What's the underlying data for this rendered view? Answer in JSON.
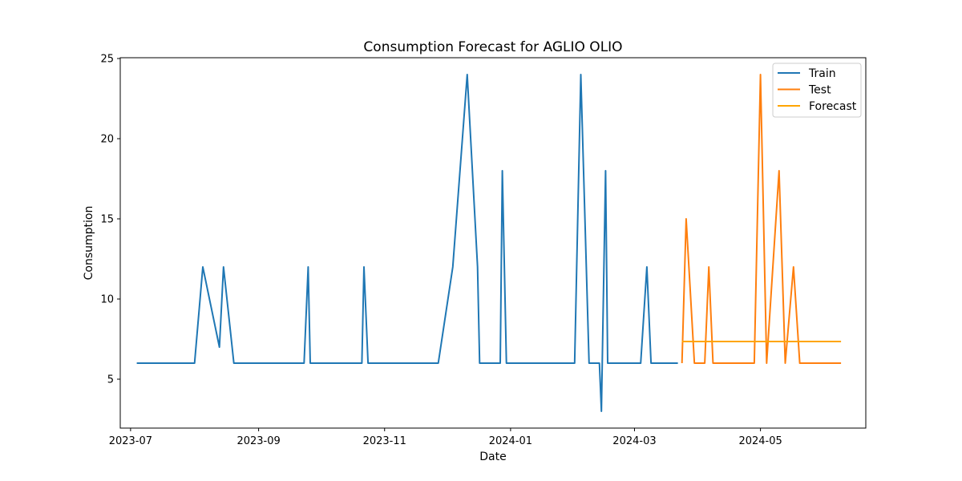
{
  "chart_data": {
    "type": "line",
    "title": "Consumption Forecast for AGLIO OLIO",
    "xlabel": "Date",
    "ylabel": "Consumption",
    "xlim": [
      "2023-06-26",
      "2024-06-21"
    ],
    "ylim": [
      1.95,
      25.05
    ],
    "x_ticks": [
      "2023-07",
      "2023-09",
      "2023-11",
      "2024-01",
      "2024-03",
      "2024-05"
    ],
    "y_ticks": [
      5,
      10,
      15,
      20,
      25
    ],
    "grid": false,
    "legend_position": "top-right",
    "colors": {
      "Train": "#1f77b4",
      "Test": "#ff7f0e",
      "Forecast": "#ffa500"
    },
    "series": [
      {
        "name": "Train",
        "x": [
          "2023-07-04",
          "2023-07-12",
          "2023-07-20",
          "2023-07-28",
          "2023-08-01",
          "2023-08-05",
          "2023-08-13",
          "2023-08-15",
          "2023-08-20",
          "2023-08-29",
          "2023-09-08",
          "2023-09-18",
          "2023-09-23",
          "2023-09-25",
          "2023-09-26",
          "2023-10-06",
          "2023-10-16",
          "2023-10-21",
          "2023-10-22",
          "2023-10-24",
          "2023-11-03",
          "2023-11-13",
          "2023-11-23",
          "2023-11-27",
          "2023-12-04",
          "2023-12-11",
          "2023-12-16",
          "2023-12-17",
          "2023-12-27",
          "2023-12-28",
          "2023-12-30",
          "2024-01-09",
          "2024-01-19",
          "2024-01-29",
          "2024-02-01",
          "2024-02-04",
          "2024-02-08",
          "2024-02-12",
          "2024-02-13",
          "2024-02-14",
          "2024-02-16",
          "2024-02-17",
          "2024-02-27",
          "2024-03-04",
          "2024-03-07",
          "2024-03-09",
          "2024-03-19",
          "2024-03-22"
        ],
        "values": [
          6,
          6,
          6,
          6,
          6,
          12,
          7,
          12,
          6,
          6,
          6,
          6,
          6,
          12,
          6,
          6,
          6,
          6,
          12,
          6,
          6,
          6,
          6,
          6,
          12,
          24,
          12,
          6,
          6,
          18,
          6,
          6,
          6,
          6,
          6,
          24,
          6,
          6,
          6,
          3,
          18,
          6,
          6,
          6,
          12,
          6,
          6,
          6
        ]
      },
      {
        "name": "Test",
        "x": [
          "2024-03-24",
          "2024-03-26",
          "2024-03-30",
          "2024-04-04",
          "2024-04-06",
          "2024-04-08",
          "2024-04-18",
          "2024-04-28",
          "2024-05-01",
          "2024-05-04",
          "2024-05-10",
          "2024-05-13",
          "2024-05-17",
          "2024-05-20",
          "2024-05-30",
          "2024-06-09"
        ],
        "values": [
          6,
          15,
          6,
          6,
          12,
          6,
          6,
          6,
          24,
          6,
          18,
          6,
          12,
          6,
          6,
          6
        ]
      },
      {
        "name": "Forecast",
        "x": [
          "2024-03-24",
          "2024-06-09"
        ],
        "values": [
          7.35,
          7.35
        ]
      }
    ]
  }
}
